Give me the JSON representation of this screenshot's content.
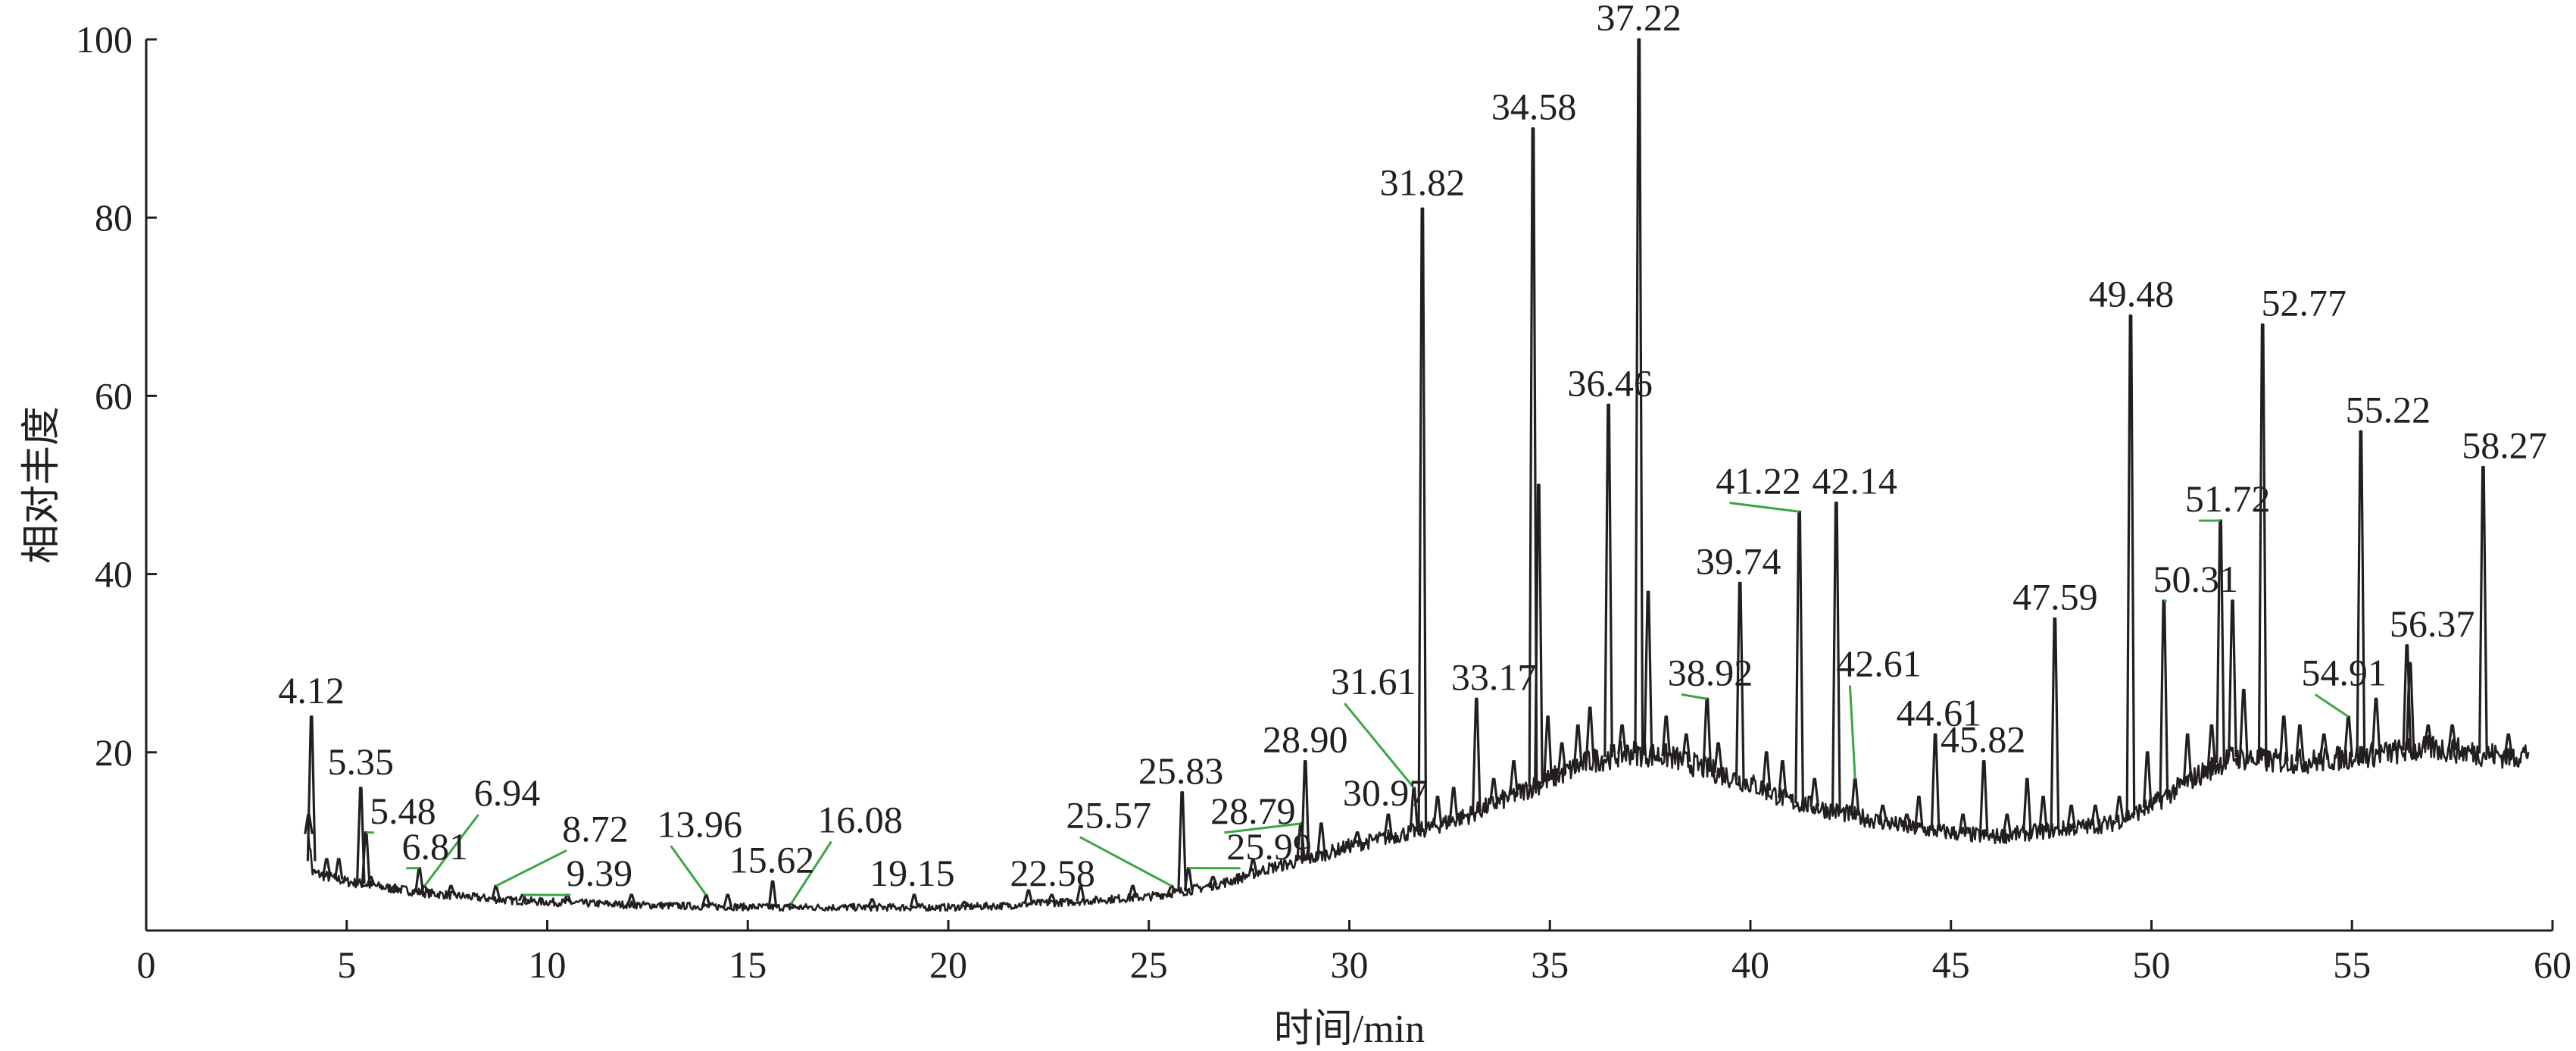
{
  "chart_data": {
    "type": "line",
    "xlabel": "时间/min",
    "ylabel": "相对丰度",
    "xlim": [
      0,
      60
    ],
    "ylim": [
      0,
      100
    ],
    "x_ticks": [
      0,
      5,
      10,
      15,
      20,
      25,
      30,
      35,
      40,
      45,
      50,
      55,
      60
    ],
    "y_ticks": [
      20,
      40,
      60,
      80,
      100
    ],
    "grid": false,
    "legend": "none",
    "colors": {
      "trace": "#231f20",
      "leader": "#3aa645",
      "text": "#231f20"
    },
    "baseline": [
      [
        4.0,
        13
      ],
      [
        4.15,
        6.5
      ],
      [
        5,
        5.5
      ],
      [
        6,
        4.8
      ],
      [
        7,
        4.2
      ],
      [
        8,
        3.8
      ],
      [
        9,
        3.4
      ],
      [
        10,
        3.2
      ],
      [
        12,
        2.9
      ],
      [
        14,
        2.7
      ],
      [
        16,
        2.6
      ],
      [
        18,
        2.6
      ],
      [
        20,
        2.6
      ],
      [
        21.5,
        2.8
      ],
      [
        22,
        3.0
      ],
      [
        23,
        3.2
      ],
      [
        24,
        3.5
      ],
      [
        25,
        3.8
      ],
      [
        26,
        4.5
      ],
      [
        27,
        5.5
      ],
      [
        28,
        7
      ],
      [
        29,
        8
      ],
      [
        30,
        9.5
      ],
      [
        31,
        10.5
      ],
      [
        32,
        11.5
      ],
      [
        33,
        13
      ],
      [
        34,
        15
      ],
      [
        35,
        17
      ],
      [
        36,
        19
      ],
      [
        37,
        20
      ],
      [
        38,
        19.5
      ],
      [
        39,
        18
      ],
      [
        40,
        16.5
      ],
      [
        41,
        14.5
      ],
      [
        42,
        13.5
      ],
      [
        43,
        12.5
      ],
      [
        44,
        11.5
      ],
      [
        45,
        11
      ],
      [
        46,
        10.5
      ],
      [
        47,
        11
      ],
      [
        48,
        11.5
      ],
      [
        49,
        12
      ],
      [
        50,
        14
      ],
      [
        51,
        17
      ],
      [
        52,
        19.5
      ],
      [
        53,
        19
      ],
      [
        54,
        19
      ],
      [
        55,
        19.5
      ],
      [
        56,
        20
      ],
      [
        57,
        20.5
      ],
      [
        58,
        20
      ],
      [
        59,
        19.5
      ],
      [
        59.4,
        20
      ]
    ],
    "peaks": [
      {
        "label": "4.12",
        "x": 4.12,
        "y": 24,
        "label_x": 4.12,
        "label_y": 25,
        "leader": false
      },
      {
        "label": "5.35",
        "x": 5.35,
        "y": 16,
        "label_x": 5.35,
        "label_y": 17,
        "leader": false
      },
      {
        "label": "5.48",
        "x": 5.48,
        "y": 11,
        "label_x": 6.4,
        "label_y": 11.5,
        "leader": true
      },
      {
        "label": "6.81",
        "x": 6.81,
        "y": 7,
        "label_x": 7.2,
        "label_y": 7.5,
        "leader": true
      },
      {
        "label": "6.94",
        "x": 6.94,
        "y": 5,
        "label_x": 9.0,
        "label_y": 13.5,
        "leader": true
      },
      {
        "label": "8.72",
        "x": 8.72,
        "y": 5,
        "label_x": 11.2,
        "label_y": 9.5,
        "leader": true
      },
      {
        "label": "9.39",
        "x": 9.39,
        "y": 4,
        "label_x": 11.3,
        "label_y": 4.5,
        "leader": true
      },
      {
        "label": "13.96",
        "x": 13.96,
        "y": 4,
        "label_x": 13.8,
        "label_y": 10,
        "leader": true
      },
      {
        "label": "15.62",
        "x": 15.62,
        "y": 5.5,
        "label_x": 15.6,
        "label_y": 6,
        "leader": false
      },
      {
        "label": "16.08",
        "x": 16.08,
        "y": 3,
        "label_x": 17.8,
        "label_y": 10.5,
        "leader": true
      },
      {
        "label": "19.15",
        "x": 19.15,
        "y": 4,
        "label_x": 19.1,
        "label_y": 4.5,
        "leader": false
      },
      {
        "label": "22.58",
        "x": 22.58,
        "y": 4,
        "label_x": 22.6,
        "label_y": 4.5,
        "leader": false
      },
      {
        "label": "25.57",
        "x": 25.57,
        "y": 5,
        "label_x": 24.0,
        "label_y": 11,
        "leader": true
      },
      {
        "label": "25.83",
        "x": 25.83,
        "y": 15.5,
        "label_x": 25.8,
        "label_y": 16,
        "leader": false
      },
      {
        "label": "25.99",
        "x": 25.99,
        "y": 7,
        "label_x": 28.0,
        "label_y": 7.5,
        "leader": true
      },
      {
        "label": "28.79",
        "x": 28.79,
        "y": 12,
        "label_x": 27.6,
        "label_y": 11.5,
        "leader": true
      },
      {
        "label": "28.90",
        "x": 28.9,
        "y": 19,
        "label_x": 28.9,
        "label_y": 19.5,
        "leader": false
      },
      {
        "label": "30.97",
        "x": 30.97,
        "y": 13,
        "label_x": 30.9,
        "label_y": 13.5,
        "leader": false
      },
      {
        "label": "31.61",
        "x": 31.61,
        "y": 16,
        "label_x": 30.6,
        "label_y": 26,
        "leader": true
      },
      {
        "label": "31.82",
        "x": 31.82,
        "y": 81,
        "label_x": 31.82,
        "label_y": 82,
        "leader": false
      },
      {
        "label": "33.17",
        "x": 33.17,
        "y": 26,
        "label_x": 33.6,
        "label_y": 26.5,
        "leader": false
      },
      {
        "label": "34.58",
        "x": 34.58,
        "y": 90,
        "label_x": 34.6,
        "label_y": 90.5,
        "leader": false
      },
      {
        "label": "36.46",
        "x": 36.46,
        "y": 59,
        "label_x": 36.5,
        "label_y": 59.5,
        "leader": false
      },
      {
        "label": "37.22",
        "x": 37.22,
        "y": 100,
        "label_x": 37.22,
        "label_y": 100.5,
        "leader": false
      },
      {
        "label": "38.92",
        "x": 38.92,
        "y": 26,
        "label_x": 39.0,
        "label_y": 27,
        "leader": true
      },
      {
        "label": "39.74",
        "x": 39.74,
        "y": 39,
        "label_x": 39.7,
        "label_y": 39.5,
        "leader": false
      },
      {
        "label": "41.22",
        "x": 41.22,
        "y": 47,
        "label_x": 40.2,
        "label_y": 48.5,
        "leader": true
      },
      {
        "label": "42.14",
        "x": 42.14,
        "y": 48,
        "label_x": 42.6,
        "label_y": 48.5,
        "leader": false
      },
      {
        "label": "42.61",
        "x": 42.61,
        "y": 17,
        "label_x": 43.2,
        "label_y": 28,
        "leader": true
      },
      {
        "label": "44.61",
        "x": 44.61,
        "y": 22,
        "label_x": 44.7,
        "label_y": 22.5,
        "leader": false
      },
      {
        "label": "45.82",
        "x": 45.82,
        "y": 19,
        "label_x": 45.8,
        "label_y": 19.5,
        "leader": false
      },
      {
        "label": "47.59",
        "x": 47.59,
        "y": 35,
        "label_x": 47.6,
        "label_y": 35.5,
        "leader": false
      },
      {
        "label": "49.48",
        "x": 49.48,
        "y": 69,
        "label_x": 49.5,
        "label_y": 69.5,
        "leader": false
      },
      {
        "label": "50.31",
        "x": 50.31,
        "y": 37,
        "label_x": 51.1,
        "label_y": 37.5,
        "leader": true
      },
      {
        "label": "51.72",
        "x": 51.72,
        "y": 46,
        "label_x": 51.9,
        "label_y": 46.5,
        "leader": true
      },
      {
        "label": "52.77",
        "x": 52.77,
        "y": 68,
        "label_x": 53.8,
        "label_y": 68.5,
        "leader": false
      },
      {
        "label": "54.91",
        "x": 54.91,
        "y": 24,
        "label_x": 54.8,
        "label_y": 27,
        "leader": true
      },
      {
        "label": "55.22",
        "x": 55.22,
        "y": 56,
        "label_x": 55.9,
        "label_y": 56.5,
        "leader": false
      },
      {
        "label": "56.37",
        "x": 56.37,
        "y": 32,
        "label_x": 57.0,
        "label_y": 32.5,
        "leader": false
      },
      {
        "label": "58.27",
        "x": 58.27,
        "y": 52,
        "label_x": 58.8,
        "label_y": 52.5,
        "leader": false
      }
    ],
    "minor_peaks": [
      [
        4.05,
        13
      ],
      [
        4.5,
        8
      ],
      [
        4.8,
        8
      ],
      [
        5.6,
        6
      ],
      [
        6.2,
        5
      ],
      [
        7.6,
        5
      ],
      [
        10.5,
        4
      ],
      [
        12.1,
        4
      ],
      [
        14.5,
        4
      ],
      [
        18.1,
        3.5
      ],
      [
        20.4,
        3.2
      ],
      [
        22.0,
        4.5
      ],
      [
        23.3,
        5
      ],
      [
        24.6,
        5
      ],
      [
        26.6,
        6
      ],
      [
        27.6,
        8
      ],
      [
        29.3,
        12
      ],
      [
        30.2,
        11
      ],
      [
        32.2,
        15
      ],
      [
        32.6,
        16
      ],
      [
        33.6,
        17
      ],
      [
        34.1,
        19
      ],
      [
        34.72,
        50
      ],
      [
        34.95,
        24
      ],
      [
        35.3,
        21
      ],
      [
        35.7,
        23
      ],
      [
        36.0,
        25
      ],
      [
        36.8,
        23
      ],
      [
        37.45,
        38
      ],
      [
        37.9,
        24
      ],
      [
        38.4,
        22
      ],
      [
        39.2,
        21
      ],
      [
        40.4,
        20
      ],
      [
        40.8,
        19
      ],
      [
        41.6,
        17
      ],
      [
        43.3,
        14
      ],
      [
        43.9,
        13
      ],
      [
        44.2,
        15
      ],
      [
        45.3,
        13
      ],
      [
        46.4,
        13
      ],
      [
        46.9,
        17
      ],
      [
        47.3,
        15
      ],
      [
        48.0,
        14
      ],
      [
        48.6,
        14
      ],
      [
        49.2,
        15
      ],
      [
        49.9,
        20
      ],
      [
        50.9,
        22
      ],
      [
        51.5,
        23
      ],
      [
        52.02,
        37
      ],
      [
        52.3,
        27
      ],
      [
        53.3,
        24
      ],
      [
        53.7,
        23
      ],
      [
        54.3,
        22
      ],
      [
        55.6,
        26
      ],
      [
        56.45,
        30
      ],
      [
        56.9,
        23
      ],
      [
        57.5,
        23
      ],
      [
        58.9,
        22
      ]
    ]
  }
}
